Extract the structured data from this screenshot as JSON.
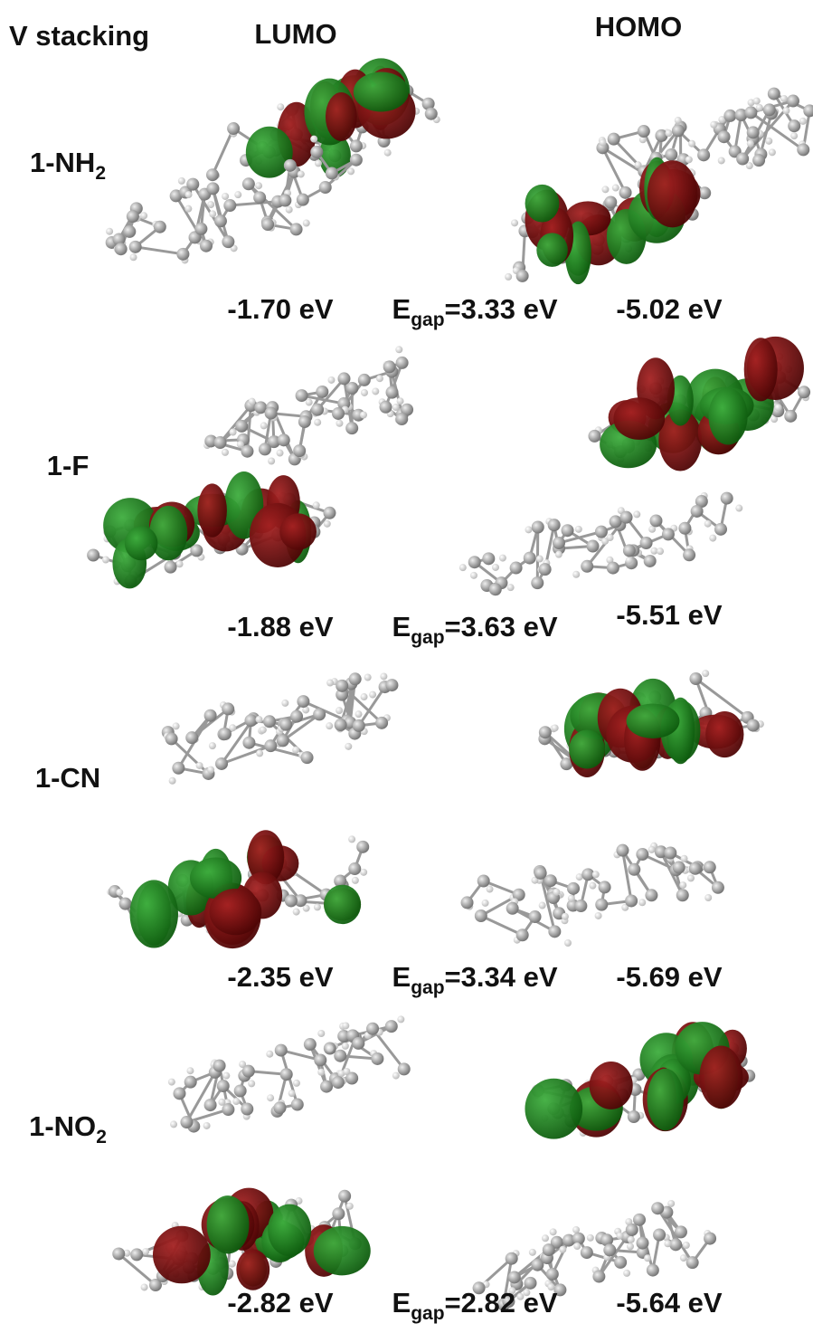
{
  "header": {
    "title": "V stacking",
    "lumo": "LUMO",
    "homo": "HOMO"
  },
  "rows": [
    {
      "label": {
        "main": "1-NH",
        "sub": "2"
      },
      "lumo": "-1.70 eV",
      "gap": {
        "main": "E",
        "sub": "gap",
        "value": "=3.33 eV"
      },
      "homo": "-5.02 eV"
    },
    {
      "label": {
        "main": "1-F"
      },
      "lumo": "-1.88 eV",
      "gap": {
        "main": "E",
        "sub": "gap",
        "value": "=3.63 eV"
      },
      "homo": "-5.51 eV"
    },
    {
      "label": {
        "main": "1-CN"
      },
      "lumo": "-2.35 eV",
      "gap": {
        "main": "E",
        "sub": "gap",
        "value": "=3.34 eV"
      },
      "homo": "-5.69 eV"
    },
    {
      "label": {
        "main": "1-NO",
        "sub": "2"
      },
      "lumo": "-2.82 eV",
      "gap": {
        "main": "E",
        "sub": "gap",
        "value": "=2.82 eV"
      },
      "homo": "-5.64 eV"
    }
  ]
}
